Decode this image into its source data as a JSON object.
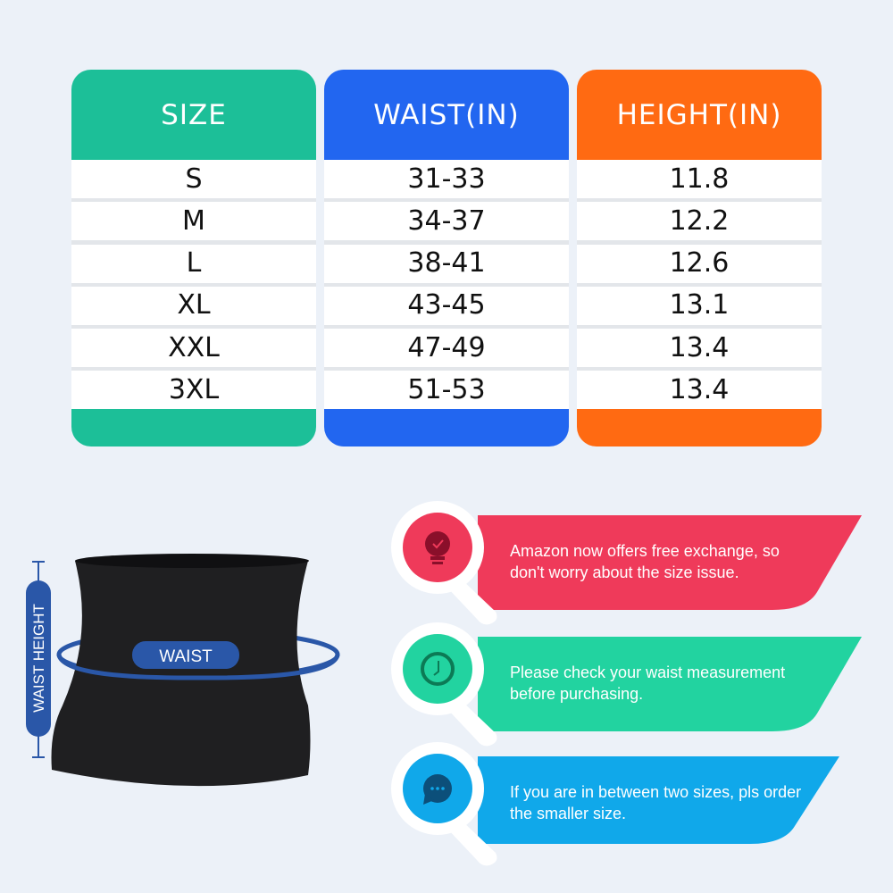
{
  "table": {
    "columns": [
      {
        "header": "SIZE",
        "color": "#1cbf98"
      },
      {
        "header": "WAIST(IN)",
        "color": "#2266f0"
      },
      {
        "header": "HEIGHT(IN)",
        "color": "#ff6a12"
      }
    ],
    "rows": [
      [
        "S",
        "31-33",
        "11.8"
      ],
      [
        "M",
        "34-37",
        "12.2"
      ],
      [
        "L",
        "38-41",
        "12.6"
      ],
      [
        "XL",
        "43-45",
        "13.1"
      ],
      [
        "XXL",
        "47-49",
        "13.4"
      ],
      [
        "3XL",
        "51-53",
        "13.4"
      ]
    ]
  },
  "diagram": {
    "waist_label": "WAIST",
    "height_label": "WAIST HEIGHT",
    "accent": "#2a57a8"
  },
  "tips": [
    {
      "icon": "lightbulb-check-icon",
      "color": "#ef3a5a",
      "icon_color": "#8a0f2a",
      "text1": "Amazon now offers free exchange, so",
      "text2": "don't worry about the size issue."
    },
    {
      "icon": "clock-icon",
      "color": "#22d3a0",
      "icon_color": "#0c7a55",
      "text1": "Please check your waist measurement",
      "text2": "before purchasing."
    },
    {
      "icon": "chat-bubble-icon",
      "color": "#10a8ea",
      "icon_color": "#0c4f7a",
      "text1": "If you are in between two sizes, pls order",
      "text2": "the smaller size."
    }
  ]
}
